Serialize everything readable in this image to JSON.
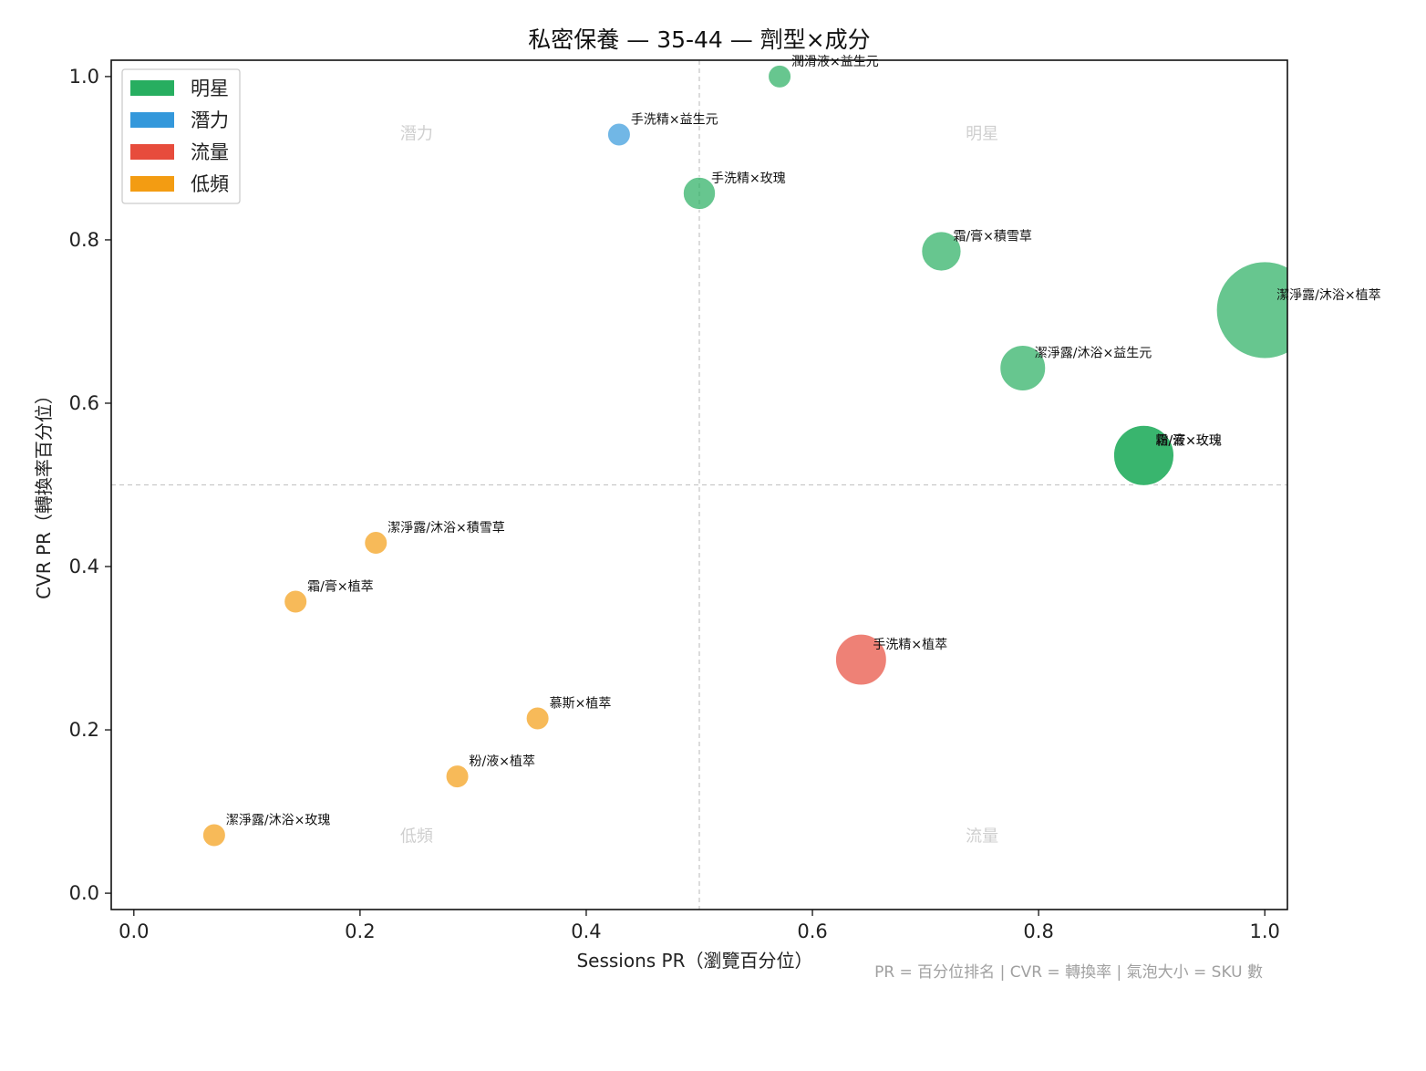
{
  "chart_data": {
    "type": "scatter",
    "title": "私密保養 — 35-44 — 劑型×成分",
    "xlabel": "Sessions PR（瀏覽百分位）",
    "ylabel": "CVR PR（轉換率百分位）",
    "xlim": [
      -0.02,
      1.02
    ],
    "ylim": [
      -0.02,
      1.02
    ],
    "x_ticks": [
      "0.0",
      "0.2",
      "0.4",
      "0.6",
      "0.8",
      "1.0"
    ],
    "y_ticks": [
      "0.0",
      "0.2",
      "0.4",
      "0.6",
      "0.8",
      "1.0"
    ],
    "x_tick_values": [
      0,
      0.2,
      0.4,
      0.6,
      0.8,
      1.0
    ],
    "y_tick_values": [
      0,
      0.2,
      0.4,
      0.6,
      0.8,
      1.0
    ],
    "threshold_x": 0.5,
    "threshold_y": 0.5,
    "legend_position": "top-left",
    "categories": {
      "明星": "#27ae60",
      "潛力": "#3498db",
      "流量": "#e74c3c",
      "低頻": "#f39c12"
    },
    "legend": [
      "明星",
      "潛力",
      "流量",
      "低頻"
    ],
    "quadrant_labels": [
      {
        "text": "潛力",
        "x": 0.25,
        "y": 0.93
      },
      {
        "text": "明星",
        "x": 0.75,
        "y": 0.93
      },
      {
        "text": "低頻",
        "x": 0.25,
        "y": 0.07
      },
      {
        "text": "流量",
        "x": 0.75,
        "y": 0.07
      }
    ],
    "points": [
      {
        "label": "潤滑液×益生元",
        "x": 0.571,
        "y": 1.0,
        "sku": 1,
        "category": "明星"
      },
      {
        "label": "手洗精×益生元",
        "x": 0.429,
        "y": 0.929,
        "sku": 1,
        "category": "潛力"
      },
      {
        "label": "手洗精×玫瑰",
        "x": 0.5,
        "y": 0.857,
        "sku": 2,
        "category": "明星"
      },
      {
        "label": "霜/膏×積雪草",
        "x": 0.714,
        "y": 0.786,
        "sku": 3,
        "category": "明星"
      },
      {
        "label": "潔淨露/沐浴×植萃",
        "x": 1.0,
        "y": 0.714,
        "sku": 18,
        "category": "明星"
      },
      {
        "label": "潔淨露/沐浴×益生元",
        "x": 0.786,
        "y": 0.643,
        "sku": 4,
        "category": "明星"
      },
      {
        "label": "粉/液×玫瑰",
        "x": 0.893,
        "y": 0.536,
        "sku": 7,
        "category": "明星"
      },
      {
        "label": "霜/膏×玫瑰",
        "x": 0.893,
        "y": 0.536,
        "sku": 7,
        "category": "明星"
      },
      {
        "label": "潔淨露/沐浴×積雪草",
        "x": 0.214,
        "y": 0.429,
        "sku": 1,
        "category": "低頻"
      },
      {
        "label": "霜/膏×植萃",
        "x": 0.143,
        "y": 0.357,
        "sku": 1,
        "category": "低頻"
      },
      {
        "label": "手洗精×植萃",
        "x": 0.643,
        "y": 0.286,
        "sku": 5,
        "category": "流量"
      },
      {
        "label": "慕斯×植萃",
        "x": 0.357,
        "y": 0.214,
        "sku": 1,
        "category": "低頻"
      },
      {
        "label": "粉/液×植萃",
        "x": 0.286,
        "y": 0.143,
        "sku": 1,
        "category": "低頻"
      },
      {
        "label": "潔淨露/沐浴×玫瑰",
        "x": 0.071,
        "y": 0.071,
        "sku": 1,
        "category": "低頻"
      }
    ],
    "footnote": "PR = 百分位排名 | CVR = 轉換率 | 氣泡大小 = SKU 數"
  }
}
